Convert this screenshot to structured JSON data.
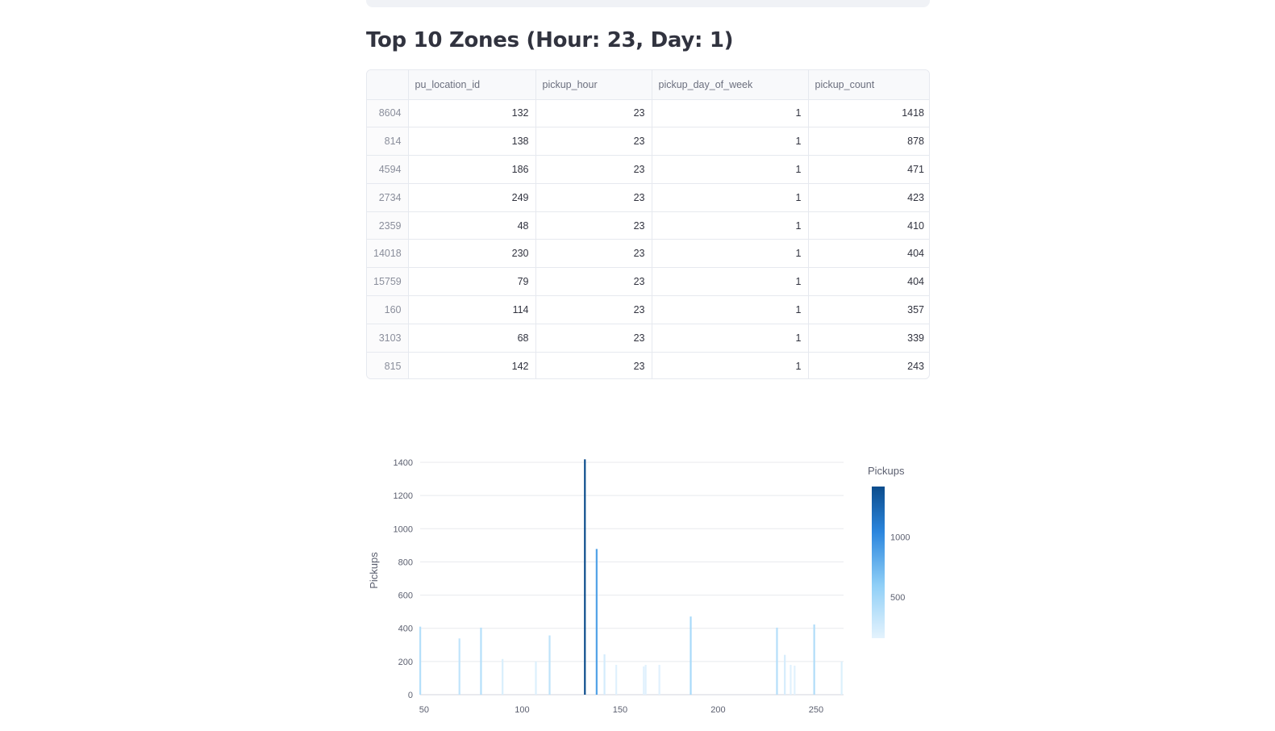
{
  "page": {
    "title": "Top 10 Zones (Hour: 23, Day: 1)"
  },
  "table": {
    "columns": [
      "",
      "pu_location_id",
      "pickup_hour",
      "pickup_day_of_week",
      "pickup_count"
    ],
    "rows": [
      [
        "8604",
        "132",
        "23",
        "1",
        "1418"
      ],
      [
        "814",
        "138",
        "23",
        "1",
        "878"
      ],
      [
        "4594",
        "186",
        "23",
        "1",
        "471"
      ],
      [
        "2734",
        "249",
        "23",
        "1",
        "423"
      ],
      [
        "2359",
        "48",
        "23",
        "1",
        "410"
      ],
      [
        "14018",
        "230",
        "23",
        "1",
        "404"
      ],
      [
        "15759",
        "79",
        "23",
        "1",
        "404"
      ],
      [
        "160",
        "114",
        "23",
        "1",
        "357"
      ],
      [
        "3103",
        "68",
        "23",
        "1",
        "339"
      ],
      [
        "815",
        "142",
        "23",
        "1",
        "243"
      ]
    ]
  },
  "chart_data": {
    "type": "bar",
    "ylabel": "Pickups",
    "xlim": [
      48,
      264
    ],
    "ylim": [
      0,
      1400
    ],
    "x_ticks": [
      50,
      100,
      150,
      200,
      250
    ],
    "y_ticks": [
      0,
      200,
      400,
      600,
      800,
      1000,
      1200,
      1400
    ],
    "grid": true,
    "colorbar": {
      "title": "Pickups",
      "ticks": [
        500,
        1000
      ],
      "min": 160,
      "max": 1418
    },
    "bars": [
      {
        "x": 48,
        "y": 410
      },
      {
        "x": 68,
        "y": 339
      },
      {
        "x": 79,
        "y": 404
      },
      {
        "x": 90,
        "y": 215
      },
      {
        "x": 107,
        "y": 200
      },
      {
        "x": 114,
        "y": 357
      },
      {
        "x": 132,
        "y": 1418
      },
      {
        "x": 138,
        "y": 878
      },
      {
        "x": 142,
        "y": 243
      },
      {
        "x": 148,
        "y": 180
      },
      {
        "x": 162,
        "y": 170
      },
      {
        "x": 163,
        "y": 180
      },
      {
        "x": 170,
        "y": 180
      },
      {
        "x": 186,
        "y": 471
      },
      {
        "x": 230,
        "y": 404
      },
      {
        "x": 234,
        "y": 240
      },
      {
        "x": 237,
        "y": 180
      },
      {
        "x": 239,
        "y": 175
      },
      {
        "x": 249,
        "y": 423
      },
      {
        "x": 263,
        "y": 200
      }
    ]
  }
}
